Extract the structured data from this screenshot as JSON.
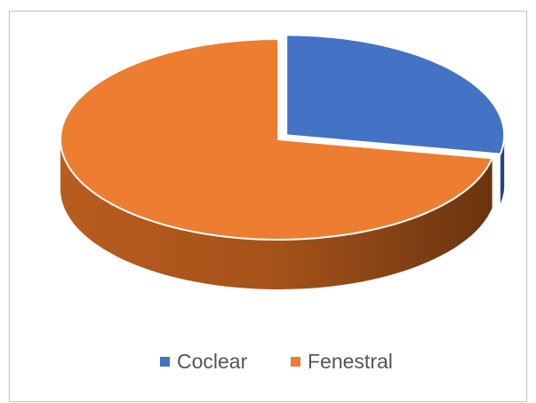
{
  "chart_data": {
    "type": "pie",
    "categories": [
      "Coclear",
      "Fenestral"
    ],
    "values": [
      28,
      72
    ],
    "colors": [
      "#4472c4",
      "#ed7d31"
    ],
    "legend": "bottom"
  }
}
